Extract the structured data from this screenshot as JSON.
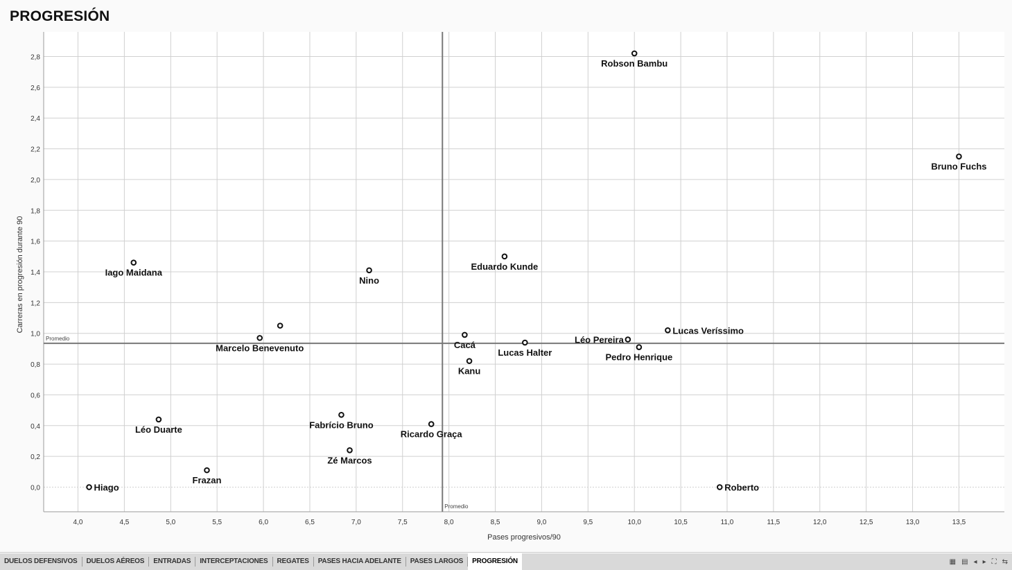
{
  "page": {
    "title": "PROGRESIÓN"
  },
  "chart_data": {
    "type": "scatter",
    "xlabel": "Pases progresivos/90",
    "ylabel": "Carreras en progresión durante 90",
    "xlim": [
      3.63,
      13.99
    ],
    "ylim": [
      -0.16,
      2.96
    ],
    "xticks": [
      4.0,
      4.5,
      5.0,
      5.5,
      6.0,
      6.5,
      7.0,
      7.5,
      8.0,
      8.5,
      9.0,
      9.5,
      10.0,
      10.5,
      11.0,
      11.5,
      12.0,
      12.5,
      13.0,
      13.5
    ],
    "yticks": [
      0.0,
      0.2,
      0.4,
      0.6,
      0.8,
      1.0,
      1.2,
      1.4,
      1.6,
      1.8,
      2.0,
      2.2,
      2.4,
      2.6,
      2.8
    ],
    "xtick_labels": [
      "4,0",
      "4,5",
      "5,0",
      "5,5",
      "6,0",
      "6,5",
      "7,0",
      "7,5",
      "8,0",
      "8,5",
      "9,0",
      "9,5",
      "10,0",
      "10,5",
      "11,0",
      "11,5",
      "12,0",
      "12,5",
      "13,0",
      "13,5"
    ],
    "ytick_labels": [
      "0,0",
      "0,2",
      "0,4",
      "0,6",
      "0,8",
      "1,0",
      "1,2",
      "1,4",
      "1,6",
      "1,8",
      "2,0",
      "2,2",
      "2,4",
      "2,6",
      "2,8"
    ],
    "grid": true,
    "reference_lines": {
      "x_mean": 7.93,
      "y_mean": 0.935,
      "x_label": "Promedio",
      "y_label": "Promedio"
    },
    "points": [
      {
        "name": "Robson Bambu",
        "x": 10.0,
        "y": 2.82,
        "label_pos": "below"
      },
      {
        "name": "Bruno Fuchs",
        "x": 13.5,
        "y": 2.15,
        "label_pos": "below"
      },
      {
        "name": "Eduardo Kunde",
        "x": 8.6,
        "y": 1.5,
        "label_pos": "below"
      },
      {
        "name": "Iago Maidana",
        "x": 4.6,
        "y": 1.46,
        "label_pos": "below"
      },
      {
        "name": "Nino",
        "x": 7.14,
        "y": 1.41,
        "label_pos": "below"
      },
      {
        "name": "",
        "x": 6.18,
        "y": 1.05,
        "label_pos": "none"
      },
      {
        "name": "Marcelo Benevenuto",
        "x": 5.96,
        "y": 0.97,
        "label_pos": "below"
      },
      {
        "name": "Cacá",
        "x": 8.17,
        "y": 0.99,
        "label_pos": "below"
      },
      {
        "name": "Lucas Veríssimo",
        "x": 10.36,
        "y": 1.02,
        "label_pos": "right"
      },
      {
        "name": "Léo Pereira",
        "x": 9.93,
        "y": 0.96,
        "label_pos": "left"
      },
      {
        "name": "Pedro Henrique",
        "x": 10.05,
        "y": 0.91,
        "label_pos": "below"
      },
      {
        "name": "Lucas Halter",
        "x": 8.82,
        "y": 0.94,
        "label_pos": "below"
      },
      {
        "name": "Kanu",
        "x": 8.22,
        "y": 0.82,
        "label_pos": "below"
      },
      {
        "name": "Fabrício Bruno",
        "x": 6.84,
        "y": 0.47,
        "label_pos": "below"
      },
      {
        "name": "Léo Duarte",
        "x": 4.87,
        "y": 0.44,
        "label_pos": "below"
      },
      {
        "name": "Ricardo Graça",
        "x": 7.81,
        "y": 0.41,
        "label_pos": "below"
      },
      {
        "name": "Zé Marcos",
        "x": 6.93,
        "y": 0.24,
        "label_pos": "below"
      },
      {
        "name": "Frazan",
        "x": 5.39,
        "y": 0.11,
        "label_pos": "below"
      },
      {
        "name": "Hiago",
        "x": 4.12,
        "y": 0.0,
        "label_pos": "right"
      },
      {
        "name": "Roberto",
        "x": 10.92,
        "y": 0.0,
        "label_pos": "right"
      }
    ]
  },
  "tabs": [
    {
      "label": "DUELOS DEFENSIVOS",
      "active": false
    },
    {
      "label": "DUELOS AÉREOS",
      "active": false
    },
    {
      "label": "ENTRADAS",
      "active": false
    },
    {
      "label": "INTERCEPTACIONES",
      "active": false
    },
    {
      "label": "REGATES",
      "active": false
    },
    {
      "label": "PASES HACIA ADELANTE",
      "active": false
    },
    {
      "label": "PASES LARGOS",
      "active": false
    },
    {
      "label": "PROGRESIÓN",
      "active": true
    }
  ],
  "nav": {
    "icons": [
      "grid-view-icon",
      "sheet-icon",
      "prev-icon",
      "next-icon",
      "fullscreen-icon",
      "share-icon"
    ],
    "glyphs": [
      "▦",
      "▤",
      "◂",
      "▸",
      "⛶",
      "⇆"
    ]
  },
  "colors": {
    "grid": "#d0d0d0",
    "axis": "#9a9a9a",
    "mean_line": "#777777",
    "marker": "#111111",
    "text": "#111111"
  }
}
